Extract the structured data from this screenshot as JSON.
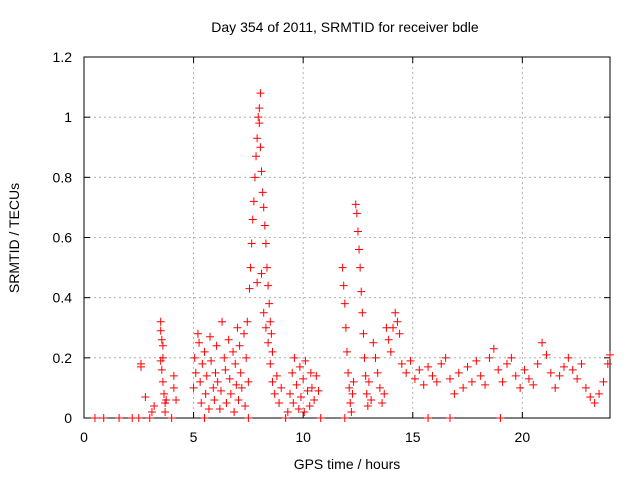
{
  "chart_data": {
    "type": "scatter",
    "title": "Day 354 of 2011, SRMTID for receiver bdle",
    "xlabel": "GPS time / hours",
    "ylabel": "SRMTID / TECUs",
    "xlim": [
      0,
      24
    ],
    "ylim": [
      0,
      1.2
    ],
    "x_ticks": [
      0,
      5,
      10,
      15,
      20
    ],
    "x_tick_labels": [
      "0",
      "5",
      "10",
      "15",
      "20"
    ],
    "y_ticks": [
      0,
      0.2,
      0.4,
      0.6,
      0.8,
      1.0,
      1.2
    ],
    "y_tick_labels": [
      "0",
      "0.2",
      "0.4",
      "0.6",
      "0.8",
      "1",
      "1.2"
    ],
    "grid": true,
    "marker": "plus",
    "series": [
      {
        "name": "SRMTID",
        "color": "#ff0000",
        "points": [
          [
            0.5,
            0.0
          ],
          [
            0.9,
            0.0
          ],
          [
            1.6,
            0.0
          ],
          [
            2.2,
            0.0
          ],
          [
            2.5,
            0.0
          ],
          [
            3.0,
            0.0
          ],
          [
            4.0,
            0.0
          ],
          [
            5.5,
            0.0
          ],
          [
            7.5,
            0.0
          ],
          [
            9.2,
            0.0
          ],
          [
            10.8,
            0.0
          ],
          [
            11.9,
            0.0
          ],
          [
            15.7,
            0.0
          ],
          [
            16.7,
            0.0
          ],
          [
            19.0,
            0.0
          ],
          [
            2.6,
            0.18
          ],
          [
            2.6,
            0.17
          ],
          [
            2.8,
            0.07
          ],
          [
            3.1,
            0.02
          ],
          [
            3.2,
            0.04
          ],
          [
            3.5,
            0.32
          ],
          [
            3.5,
            0.29
          ],
          [
            3.55,
            0.26
          ],
          [
            3.6,
            0.2
          ],
          [
            3.55,
            0.16
          ],
          [
            3.6,
            0.12
          ],
          [
            3.65,
            0.08
          ],
          [
            3.7,
            0.05
          ],
          [
            3.7,
            0.02
          ],
          [
            3.5,
            0.19
          ],
          [
            3.6,
            0.24
          ],
          [
            3.75,
            0.06
          ],
          [
            4.1,
            0.14
          ],
          [
            4.1,
            0.1
          ],
          [
            4.2,
            0.06
          ],
          [
            5.0,
            0.1
          ],
          [
            5.05,
            0.2
          ],
          [
            5.1,
            0.15
          ],
          [
            5.2,
            0.28
          ],
          [
            5.25,
            0.25
          ],
          [
            5.3,
            0.12
          ],
          [
            5.35,
            0.05
          ],
          [
            5.4,
            0.18
          ],
          [
            5.5,
            0.22
          ],
          [
            5.55,
            0.08
          ],
          [
            5.6,
            0.14
          ],
          [
            5.7,
            0.03
          ],
          [
            5.75,
            0.27
          ],
          [
            5.8,
            0.19
          ],
          [
            5.9,
            0.1
          ],
          [
            5.95,
            0.06
          ],
          [
            6.0,
            0.15
          ],
          [
            6.05,
            0.24
          ],
          [
            6.1,
            0.12
          ],
          [
            6.2,
            0.03
          ],
          [
            6.25,
            0.09
          ],
          [
            6.3,
            0.32
          ],
          [
            6.4,
            0.2
          ],
          [
            6.45,
            0.16
          ],
          [
            6.5,
            0.05
          ],
          [
            6.6,
            0.26
          ],
          [
            6.65,
            0.13
          ],
          [
            6.7,
            0.08
          ],
          [
            6.8,
            0.22
          ],
          [
            6.85,
            0.02
          ],
          [
            6.9,
            0.18
          ],
          [
            6.95,
            0.11
          ],
          [
            7.0,
            0.3
          ],
          [
            7.05,
            0.06
          ],
          [
            7.1,
            0.24
          ],
          [
            7.15,
            0.15
          ],
          [
            7.2,
            0.1
          ],
          [
            7.3,
            0.28
          ],
          [
            7.35,
            0.04
          ],
          [
            7.4,
            0.2
          ],
          [
            7.45,
            0.32
          ],
          [
            7.5,
            0.12
          ],
          [
            7.55,
            0.43
          ],
          [
            7.6,
            0.5
          ],
          [
            7.65,
            0.58
          ],
          [
            7.7,
            0.66
          ],
          [
            7.75,
            0.72
          ],
          [
            7.8,
            0.8
          ],
          [
            7.85,
            0.87
          ],
          [
            7.9,
            0.93
          ],
          [
            7.95,
            1.0
          ],
          [
            8.0,
            1.03
          ],
          [
            8.05,
            1.08
          ],
          [
            8.0,
            0.98
          ],
          [
            8.05,
            0.9
          ],
          [
            8.1,
            0.82
          ],
          [
            8.15,
            0.75
          ],
          [
            8.2,
            0.7
          ],
          [
            8.25,
            0.64
          ],
          [
            8.3,
            0.58
          ],
          [
            8.35,
            0.5
          ],
          [
            8.4,
            0.44
          ],
          [
            8.45,
            0.38
          ],
          [
            8.5,
            0.32
          ],
          [
            8.55,
            0.28
          ],
          [
            8.6,
            0.22
          ],
          [
            7.9,
            0.45
          ],
          [
            8.1,
            0.48
          ],
          [
            8.2,
            0.35
          ],
          [
            8.3,
            0.3
          ],
          [
            8.4,
            0.25
          ],
          [
            8.5,
            0.18
          ],
          [
            8.6,
            0.12
          ],
          [
            8.7,
            0.08
          ],
          [
            8.8,
            0.14
          ],
          [
            8.9,
            0.05
          ],
          [
            9.0,
            0.1
          ],
          [
            9.3,
            0.02
          ],
          [
            9.4,
            0.08
          ],
          [
            9.5,
            0.15
          ],
          [
            9.55,
            0.05
          ],
          [
            9.6,
            0.2
          ],
          [
            9.7,
            0.11
          ],
          [
            9.8,
            0.03
          ],
          [
            9.85,
            0.17
          ],
          [
            9.9,
            0.07
          ],
          [
            10.0,
            0.13
          ],
          [
            10.05,
            0.02
          ],
          [
            10.1,
            0.19
          ],
          [
            10.2,
            0.09
          ],
          [
            10.3,
            0.04
          ],
          [
            10.35,
            0.15
          ],
          [
            10.4,
            0.1
          ],
          [
            10.5,
            0.06
          ],
          [
            10.6,
            0.14
          ],
          [
            10.7,
            0.09
          ],
          [
            11.8,
            0.5
          ],
          [
            11.85,
            0.44
          ],
          [
            11.9,
            0.38
          ],
          [
            11.95,
            0.3
          ],
          [
            12.0,
            0.22
          ],
          [
            12.05,
            0.15
          ],
          [
            12.1,
            0.1
          ],
          [
            12.15,
            0.05
          ],
          [
            12.2,
            0.02
          ],
          [
            12.25,
            0.08
          ],
          [
            12.3,
            0.12
          ],
          [
            12.4,
            0.71
          ],
          [
            12.45,
            0.68
          ],
          [
            12.5,
            0.62
          ],
          [
            12.55,
            0.56
          ],
          [
            12.6,
            0.5
          ],
          [
            12.65,
            0.42
          ],
          [
            12.7,
            0.35
          ],
          [
            12.75,
            0.28
          ],
          [
            12.8,
            0.2
          ],
          [
            12.85,
            0.14
          ],
          [
            12.9,
            0.08
          ],
          [
            12.95,
            0.04
          ],
          [
            13.0,
            0.12
          ],
          [
            13.1,
            0.06
          ],
          [
            13.2,
            0.25
          ],
          [
            13.3,
            0.2
          ],
          [
            13.4,
            0.15
          ],
          [
            13.5,
            0.1
          ],
          [
            13.6,
            0.05
          ],
          [
            13.7,
            0.08
          ],
          [
            13.8,
            0.3
          ],
          [
            13.9,
            0.26
          ],
          [
            14.0,
            0.22
          ],
          [
            14.1,
            0.3
          ],
          [
            14.2,
            0.35
          ],
          [
            14.3,
            0.32
          ],
          [
            14.4,
            0.28
          ],
          [
            14.5,
            0.18
          ],
          [
            14.7,
            0.15
          ],
          [
            14.9,
            0.19
          ],
          [
            15.1,
            0.13
          ],
          [
            15.3,
            0.16
          ],
          [
            15.5,
            0.11
          ],
          [
            15.7,
            0.17
          ],
          [
            15.9,
            0.14
          ],
          [
            16.1,
            0.12
          ],
          [
            16.3,
            0.18
          ],
          [
            16.5,
            0.2
          ],
          [
            16.7,
            0.13
          ],
          [
            16.9,
            0.08
          ],
          [
            17.1,
            0.15
          ],
          [
            17.3,
            0.1
          ],
          [
            17.5,
            0.17
          ],
          [
            17.7,
            0.12
          ],
          [
            17.9,
            0.19
          ],
          [
            18.1,
            0.14
          ],
          [
            18.3,
            0.11
          ],
          [
            18.5,
            0.2
          ],
          [
            18.7,
            0.23
          ],
          [
            18.9,
            0.16
          ],
          [
            19.1,
            0.12
          ],
          [
            19.3,
            0.18
          ],
          [
            19.5,
            0.2
          ],
          [
            19.7,
            0.14
          ],
          [
            19.9,
            0.1
          ],
          [
            20.1,
            0.16
          ],
          [
            20.3,
            0.13
          ],
          [
            20.5,
            0.11
          ],
          [
            20.7,
            0.18
          ],
          [
            20.9,
            0.25
          ],
          [
            21.1,
            0.21
          ],
          [
            21.3,
            0.15
          ],
          [
            21.5,
            0.1
          ],
          [
            21.7,
            0.14
          ],
          [
            21.9,
            0.17
          ],
          [
            22.1,
            0.2
          ],
          [
            22.3,
            0.16
          ],
          [
            22.5,
            0.13
          ],
          [
            22.7,
            0.18
          ],
          [
            22.9,
            0.1
          ],
          [
            23.1,
            0.07
          ],
          [
            23.3,
            0.05
          ],
          [
            23.5,
            0.08
          ],
          [
            23.7,
            0.12
          ],
          [
            23.9,
            0.18
          ],
          [
            24.0,
            0.21
          ]
        ]
      }
    ]
  }
}
